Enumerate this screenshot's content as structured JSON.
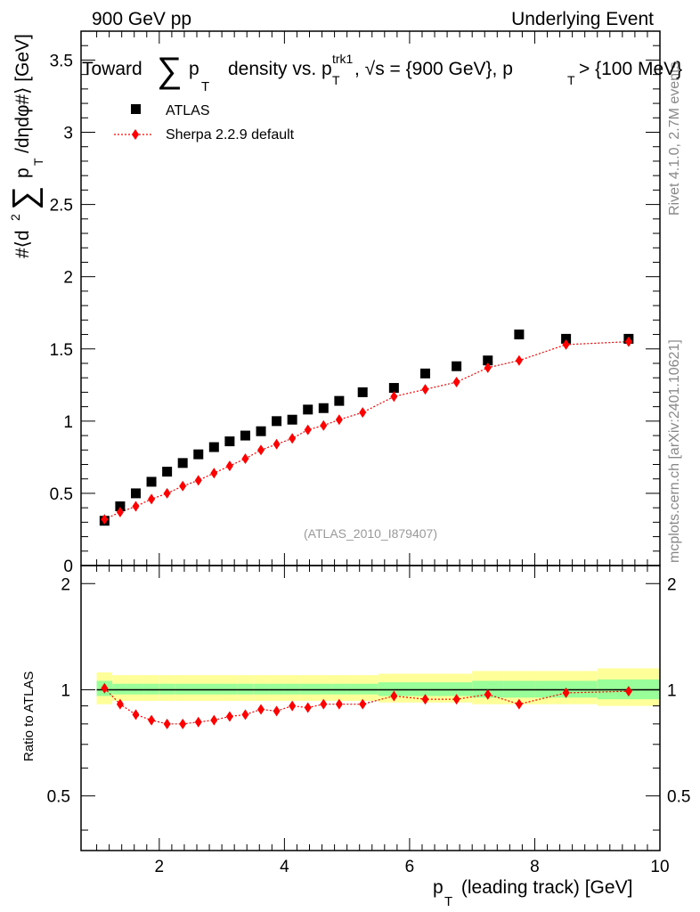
{
  "header": {
    "left": "900 GeV pp",
    "right": "Underlying Event"
  },
  "title": {
    "lead": "Toward",
    "sum_symbol": "∑",
    "p": "p",
    "sub_T": "T",
    "mid": "density vs. p",
    "sup_trk1": "trk1",
    "sub_T2": "T",
    "after_trk": ", √s = {900 GeV}, p",
    "sub_T3": "T",
    "tail": " > {100 MeV}"
  },
  "ylabel": {
    "part1": "#⟨d",
    "sup2": "2",
    "sum_symbol": "∑",
    "part2": "p",
    "subT": "T",
    "part3": "/dηdφ#⟩ [GeV]"
  },
  "ratio_ylabel": "Ratio to ATLAS",
  "xlabel": {
    "p": "p",
    "subT": "T",
    "rest": " (leading track) [GeV]"
  },
  "side_labels": {
    "rivet": "Rivet 4.1.0,  2.7M events",
    "mcplots": "mcplots.cern.ch [arXiv:2401.10621]"
  },
  "analysis_id": "(ATLAS_2010_I879407)",
  "legend": {
    "atlas": "ATLAS",
    "sherpa": "Sherpa 2.2.9 default"
  },
  "colors": {
    "data": "#000000",
    "mc": "#ff0000",
    "band_outer": "#ffff99",
    "band_inner": "#99ff99"
  },
  "chart_data": {
    "type": "scatter",
    "xlim": [
      0.75,
      10.0
    ],
    "main_ylim": [
      0,
      3.7
    ],
    "ratio_ylim": [
      0.35,
      2.25
    ],
    "x_ticks": [
      2,
      4,
      6,
      8,
      10
    ],
    "x_tick_labels": [
      "2",
      "4",
      "6",
      "8",
      "10"
    ],
    "main_y_ticks": [
      0,
      0.5,
      1,
      1.5,
      2,
      2.5,
      3,
      3.5
    ],
    "main_y_tick_labels": [
      "0",
      "0.5",
      "1",
      "1.5",
      "2",
      "2.5",
      "3",
      "3.5"
    ],
    "ratio_y_ticks": [
      0.5,
      1,
      2
    ],
    "ratio_y_tick_labels": [
      "0.5",
      "1",
      "2"
    ],
    "series": [
      {
        "name": "ATLAS",
        "marker": "square",
        "x": [
          1.125,
          1.375,
          1.625,
          1.875,
          2.125,
          2.375,
          2.625,
          2.875,
          3.125,
          3.375,
          3.625,
          3.875,
          4.125,
          4.375,
          4.625,
          4.875,
          5.25,
          5.75,
          6.25,
          6.75,
          7.25,
          7.75,
          8.5,
          9.5
        ],
        "y": [
          0.31,
          0.41,
          0.5,
          0.58,
          0.65,
          0.71,
          0.77,
          0.82,
          0.86,
          0.9,
          0.93,
          1.0,
          1.01,
          1.08,
          1.09,
          1.14,
          1.2,
          1.23,
          1.33,
          1.38,
          1.42,
          1.6,
          1.57,
          1.57
        ]
      },
      {
        "name": "Sherpa 2.2.9 default",
        "marker": "diamond",
        "x": [
          1.125,
          1.375,
          1.625,
          1.875,
          2.125,
          2.375,
          2.625,
          2.875,
          3.125,
          3.375,
          3.625,
          3.875,
          4.125,
          4.375,
          4.625,
          4.875,
          5.25,
          5.75,
          6.25,
          6.75,
          7.25,
          7.75,
          8.5,
          9.5
        ],
        "y": [
          0.32,
          0.37,
          0.41,
          0.46,
          0.5,
          0.55,
          0.59,
          0.64,
          0.69,
          0.74,
          0.8,
          0.84,
          0.88,
          0.94,
          0.97,
          1.01,
          1.06,
          1.17,
          1.22,
          1.27,
          1.37,
          1.42,
          1.53,
          1.55
        ],
        "ratio": [
          1.01,
          0.91,
          0.85,
          0.82,
          0.8,
          0.8,
          0.81,
          0.82,
          0.84,
          0.85,
          0.88,
          0.87,
          0.9,
          0.89,
          0.91,
          0.91,
          0.91,
          0.96,
          0.94,
          0.94,
          0.97,
          0.91,
          0.98,
          0.99
        ]
      }
    ],
    "ratio_band": {
      "x_edges": [
        1.0,
        1.25,
        1.5,
        1.75,
        2.0,
        2.25,
        2.5,
        2.75,
        3.0,
        3.25,
        3.5,
        3.75,
        4.0,
        4.25,
        4.5,
        4.75,
        5.0,
        5.5,
        6.0,
        6.5,
        7.0,
        7.5,
        8.0,
        9.0,
        10.0
      ],
      "outer_lo": [
        0.91,
        0.93,
        0.93,
        0.93,
        0.93,
        0.93,
        0.93,
        0.93,
        0.93,
        0.93,
        0.93,
        0.93,
        0.93,
        0.93,
        0.93,
        0.93,
        0.93,
        0.92,
        0.92,
        0.92,
        0.91,
        0.91,
        0.91,
        0.9
      ],
      "outer_hi": [
        1.12,
        1.1,
        1.1,
        1.1,
        1.1,
        1.1,
        1.1,
        1.1,
        1.1,
        1.1,
        1.1,
        1.1,
        1.1,
        1.1,
        1.1,
        1.1,
        1.1,
        1.11,
        1.11,
        1.11,
        1.13,
        1.13,
        1.13,
        1.15
      ],
      "inner_lo": [
        0.96,
        0.97,
        0.97,
        0.97,
        0.97,
        0.97,
        0.97,
        0.97,
        0.97,
        0.97,
        0.97,
        0.97,
        0.97,
        0.97,
        0.97,
        0.97,
        0.97,
        0.96,
        0.96,
        0.96,
        0.95,
        0.95,
        0.95,
        0.94
      ],
      "inner_hi": [
        1.06,
        1.04,
        1.04,
        1.04,
        1.04,
        1.04,
        1.04,
        1.04,
        1.04,
        1.04,
        1.04,
        1.04,
        1.04,
        1.04,
        1.04,
        1.04,
        1.04,
        1.05,
        1.05,
        1.05,
        1.06,
        1.06,
        1.06,
        1.07
      ]
    }
  }
}
